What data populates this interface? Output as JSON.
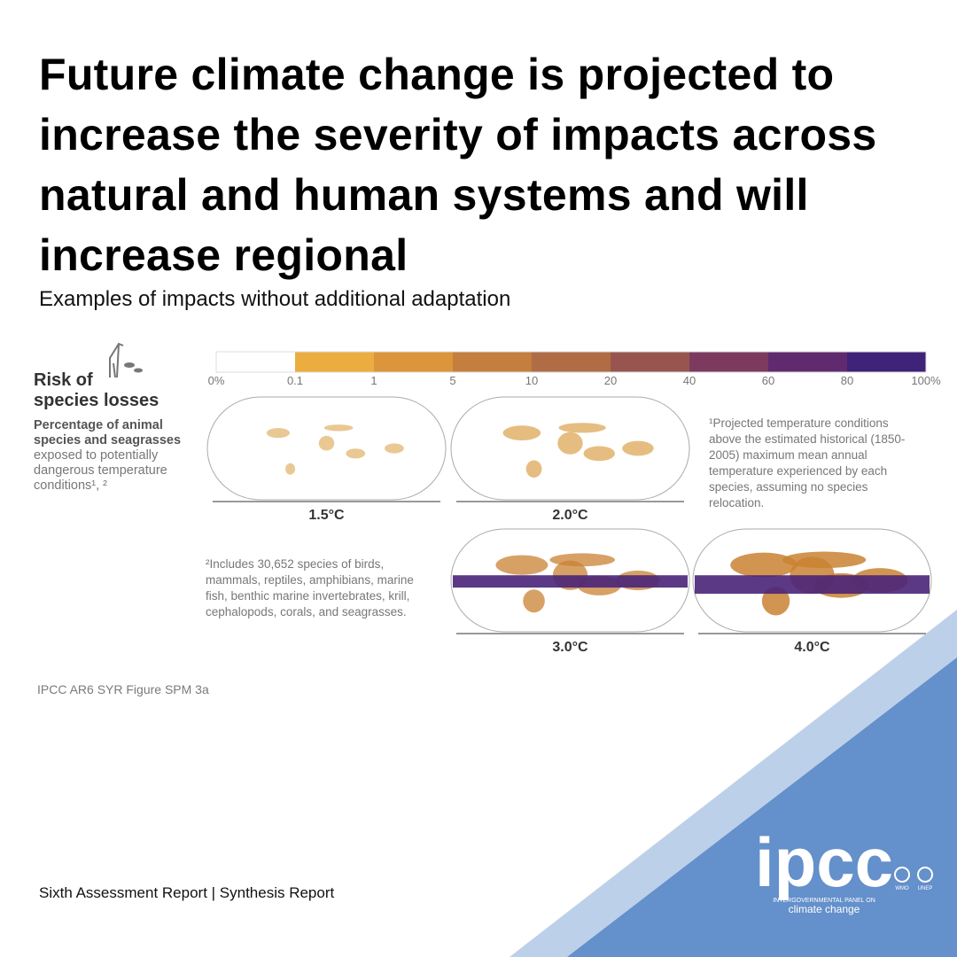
{
  "header": {
    "title": "Future climate change is projected to increase the severity of impacts across natural and human systems and will increase regional",
    "subtitle": "Examples of impacts without additional adaptation"
  },
  "panel": {
    "title_line1": "Risk of",
    "title_line2": "species losses",
    "description_bold": "Percentage of animal species and seagrasses",
    "description": "exposed to potentially dangerous temperature conditions¹, ²"
  },
  "legend": {
    "labels": [
      "0%",
      "0.1",
      "1",
      "5",
      "10",
      "20",
      "40",
      "60",
      "80",
      "100%"
    ],
    "colors": [
      "#ffffff",
      "#ebad3f",
      "#dc953a",
      "#c47e3d",
      "#b06c45",
      "#98554f",
      "#7c3b5e",
      "#5f2b6e",
      "#3e2378"
    ]
  },
  "maps": [
    {
      "label": "1.5°C"
    },
    {
      "label": "2.0°C"
    },
    {
      "label": "3.0°C"
    },
    {
      "label": "4.0°C"
    }
  ],
  "footnotes": [
    "¹Projected temperature conditions above the estimated historical (1850-2005) maximum mean annual temperature experienced by each species, assuming no species relocation.",
    "²Includes 30,652 species of birds, mammals, reptiles, amphibians, marine fish, benthic marine invertebrates, krill, cephalopods, corals, and seagrasses."
  ],
  "source": "IPCC AR6 SYR Figure SPM 3a",
  "footer": "Sixth Assessment Report | Synthesis Report",
  "logo": {
    "name": "ipcc",
    "line1": "INTERGOVERNMENTAL PANEL ON",
    "line2": "climate change",
    "partner1": "WMO",
    "partner2": "UNEP"
  }
}
